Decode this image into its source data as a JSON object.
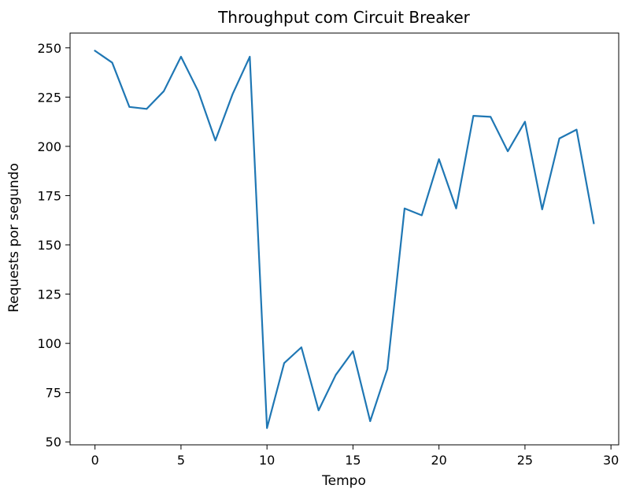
{
  "chart_data": {
    "type": "line",
    "title": "Throughput com Circuit Breaker",
    "xlabel": "Tempo",
    "ylabel": "Requests por segundo",
    "xlim": [
      -1.45,
      30.45
    ],
    "ylim": [
      48.5,
      257.5
    ],
    "xticks": [
      0,
      5,
      10,
      15,
      20,
      25,
      30
    ],
    "yticks": [
      50,
      75,
      100,
      125,
      150,
      175,
      200,
      225,
      250
    ],
    "grid": false,
    "legend": "none",
    "line_color": "#1f77b4",
    "series": [
      {
        "x": [
          0,
          1,
          2,
          3,
          4,
          5,
          6,
          7,
          8,
          9,
          10,
          11,
          12,
          13,
          14,
          15,
          16,
          17,
          18,
          19,
          20,
          21,
          22,
          23,
          24,
          25,
          26,
          27,
          28,
          29
        ],
        "values": [
          248.5,
          242.5,
          220,
          219,
          228,
          245.5,
          228,
          203,
          226.5,
          245.5,
          57,
          90,
          98,
          66,
          84,
          96,
          60.5,
          87,
          168.5,
          165,
          193.5,
          168.5,
          215.5,
          215,
          197.5,
          212.5,
          168,
          204,
          208.5,
          161
        ]
      }
    ]
  }
}
